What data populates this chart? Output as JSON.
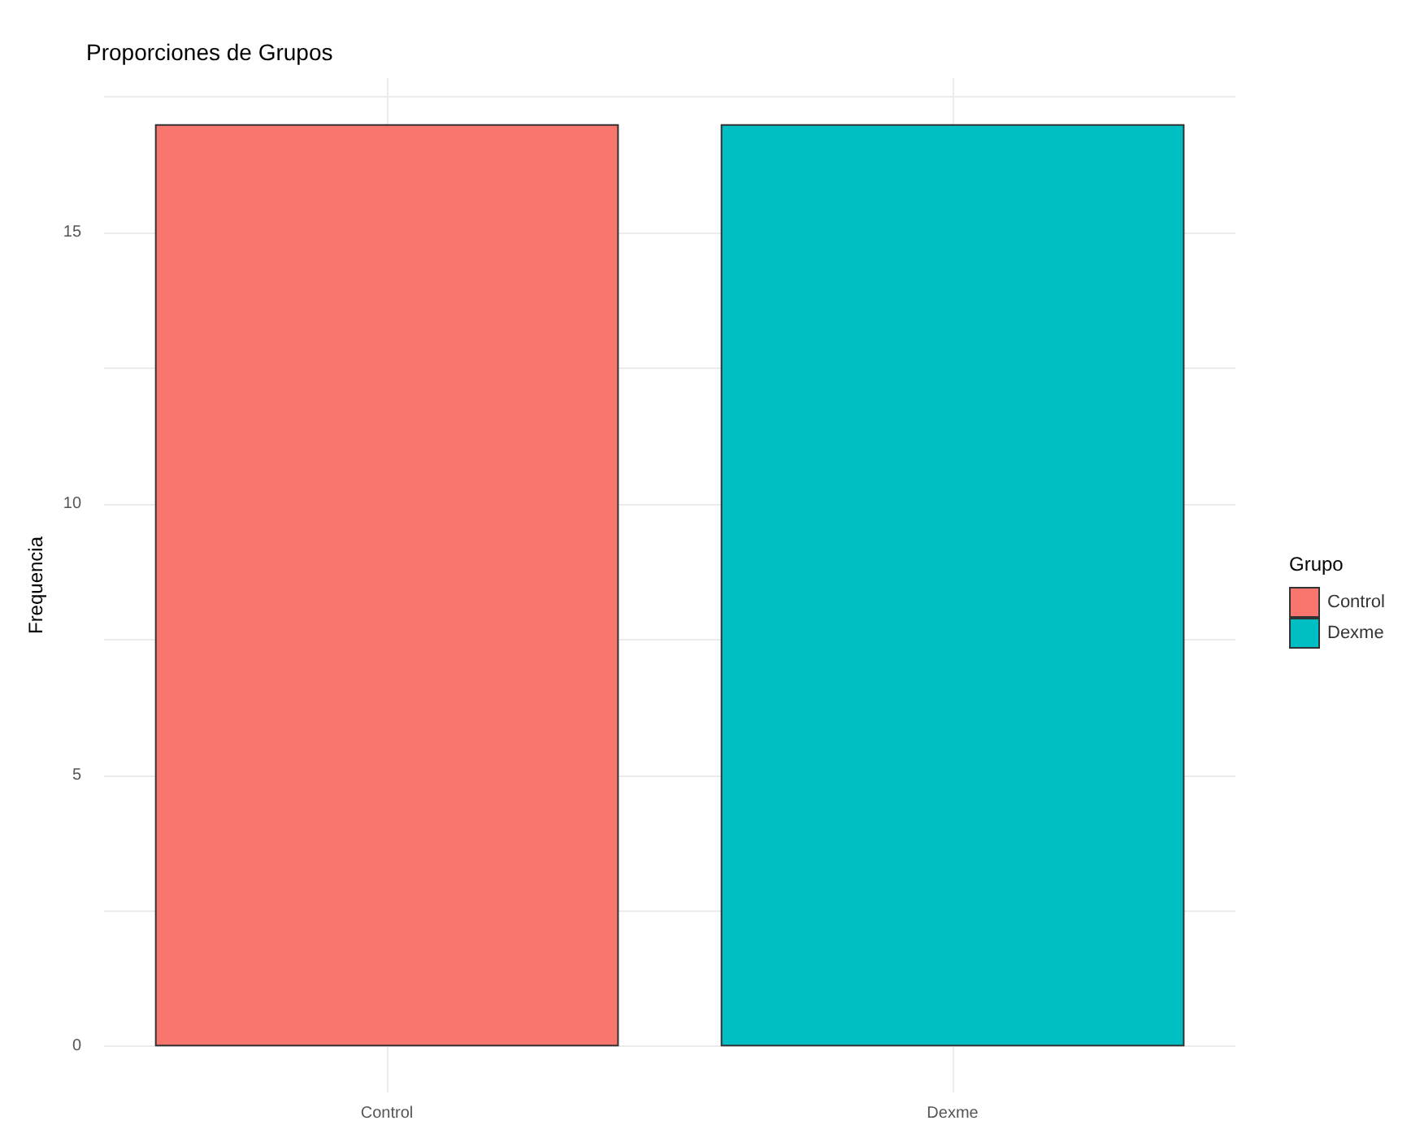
{
  "chart_data": {
    "type": "bar",
    "title": "Proporciones de Grupos",
    "xlabel": null,
    "ylabel": "Frequencia",
    "legend_title": "Grupo",
    "categories": [
      "Control",
      "Dexme"
    ],
    "series": [
      {
        "name": "Control",
        "color": "#f8766d",
        "values": [
          17,
          null
        ]
      },
      {
        "name": "Dexme",
        "color": "#00bfc4",
        "values": [
          null,
          17
        ]
      }
    ],
    "ylim": [
      -0.85,
      17.85
    ],
    "yticks": [
      0,
      {
        "value": 2.5,
        "label": null
      },
      5,
      {
        "value": 7.5,
        "label": null
      },
      10,
      {
        "value": 12.5,
        "label": null
      },
      15,
      {
        "value": 17.5,
        "label": null
      }
    ],
    "grid": true,
    "legend": "right"
  }
}
